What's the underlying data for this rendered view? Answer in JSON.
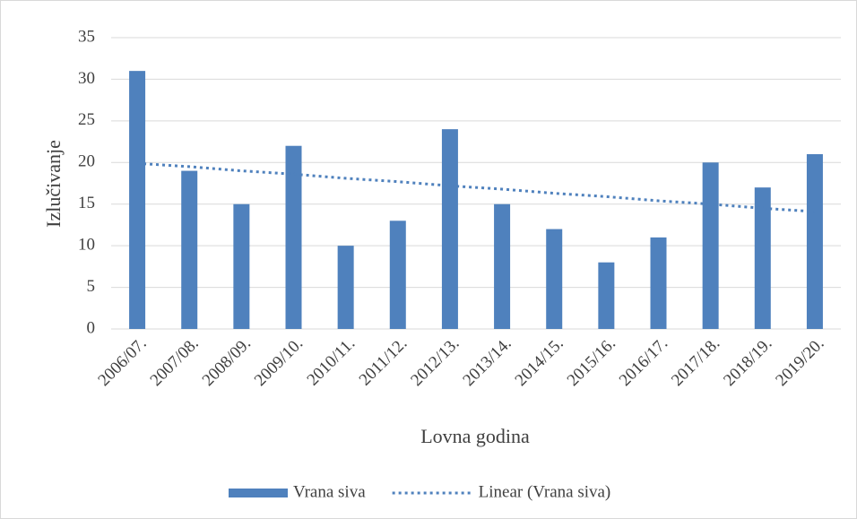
{
  "chart_data": {
    "type": "bar",
    "x_label": "Lovna godina",
    "y_label": "Izlučivanje",
    "categories": [
      "2006/07.",
      "2007/08.",
      "2008/09.",
      "2009/10.",
      "2010/11.",
      "2011/12.",
      "2012/13.",
      "2013/14.",
      "2014/15.",
      "2015/16.",
      "2016/17.",
      "2017/18.",
      "2018/19.",
      "2019/20."
    ],
    "series": [
      {
        "name": "Vrana siva",
        "type": "bar",
        "color": "#4f81bd",
        "values": [
          31,
          19,
          15,
          22,
          10,
          13,
          24,
          15,
          12,
          8,
          11,
          20,
          17,
          21
        ]
      },
      {
        "name": "Linear (Vrana siva)",
        "type": "line",
        "dash": "dotted",
        "color": "#4f81bd",
        "values": [
          19.9,
          19.5,
          19.0,
          18.6,
          18.1,
          17.7,
          17.2,
          16.8,
          16.3,
          15.9,
          15.4,
          15.0,
          14.5,
          14.1
        ]
      }
    ],
    "ylim": [
      0,
      35
    ],
    "yticks": [
      0,
      5,
      10,
      15,
      20,
      25,
      30,
      35
    ],
    "grid": true,
    "legend": "bottom"
  }
}
